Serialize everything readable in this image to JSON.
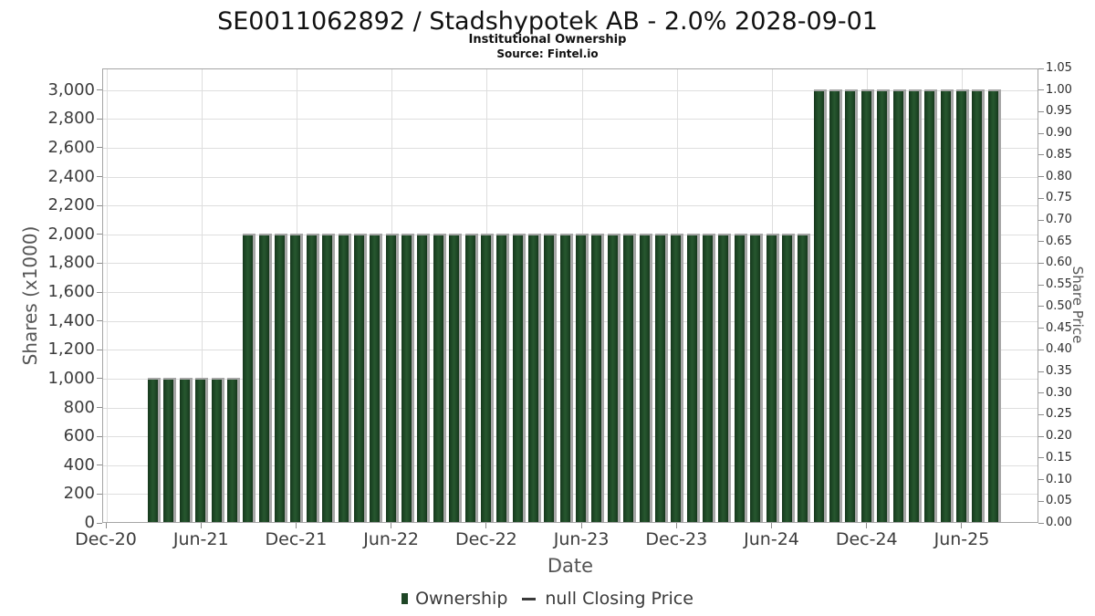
{
  "header": {
    "title": "SE0011062892 / Stadshypotek AB - 2.0% 2028-09-01",
    "subtitle": "Institutional Ownership",
    "source": "Source: Fintel.io"
  },
  "legend": {
    "ownership_label": "Ownership",
    "price_label": "null Closing Price"
  },
  "colors": {
    "bar_fill": "#1e4626",
    "bar_edge": "#a6a6a6",
    "grid_line": "#dedede",
    "plot_border": "#a5a5a5",
    "tick_text": "#3c3c3c",
    "axis_title_text": "#555555"
  },
  "chart_data": {
    "type": "bar",
    "title": "SE0011062892 / Stadshypotek AB - 2.0% 2028-09-01",
    "subtitle": "Institutional Ownership",
    "source": "Source: Fintel.io",
    "xlabel": "Date",
    "ylabel_left": "Shares (x1000)",
    "ylabel_right": "Share Price",
    "ylim_left": [
      0,
      3150
    ],
    "ylim_right": [
      0,
      1.05
    ],
    "grid": true,
    "legend_position": "bottom",
    "bar_unit": "shares x1000, monthly",
    "x_tick_labels": [
      "Dec-20",
      "Jun-21",
      "Dec-21",
      "Jun-22",
      "Dec-22",
      "Jun-23",
      "Dec-23",
      "Jun-24",
      "Dec-24",
      "Jun-25"
    ],
    "left_axis_ticks": [
      {
        "value": 0,
        "label": "0"
      },
      {
        "value": 200,
        "label": "200"
      },
      {
        "value": 400,
        "label": "400"
      },
      {
        "value": 600,
        "label": "600"
      },
      {
        "value": 800,
        "label": "800"
      },
      {
        "value": 1000,
        "label": "1,000"
      },
      {
        "value": 1200,
        "label": "1,200"
      },
      {
        "value": 1400,
        "label": "1,400"
      },
      {
        "value": 1600,
        "label": "1,600"
      },
      {
        "value": 1800,
        "label": "1,800"
      },
      {
        "value": 2000,
        "label": "2,000"
      },
      {
        "value": 2200,
        "label": "2,200"
      },
      {
        "value": 2400,
        "label": "2,400"
      },
      {
        "value": 2600,
        "label": "2,600"
      },
      {
        "value": 2800,
        "label": "2,800"
      },
      {
        "value": 3000,
        "label": "3,000"
      }
    ],
    "right_axis_ticks": [
      {
        "value": 0.0,
        "label": "0.00"
      },
      {
        "value": 0.05,
        "label": "0.05"
      },
      {
        "value": 0.1,
        "label": "0.10"
      },
      {
        "value": 0.15,
        "label": "0.15"
      },
      {
        "value": 0.2,
        "label": "0.20"
      },
      {
        "value": 0.25,
        "label": "0.25"
      },
      {
        "value": 0.3,
        "label": "0.30"
      },
      {
        "value": 0.35,
        "label": "0.35"
      },
      {
        "value": 0.4,
        "label": "0.40"
      },
      {
        "value": 0.45,
        "label": "0.45"
      },
      {
        "value": 0.5,
        "label": "0.50"
      },
      {
        "value": 0.55,
        "label": "0.55"
      },
      {
        "value": 0.6,
        "label": "0.60"
      },
      {
        "value": 0.65,
        "label": "0.65"
      },
      {
        "value": 0.7,
        "label": "0.70"
      },
      {
        "value": 0.75,
        "label": "0.75"
      },
      {
        "value": 0.8,
        "label": "0.80"
      },
      {
        "value": 0.85,
        "label": "0.85"
      },
      {
        "value": 0.9,
        "label": "0.90"
      },
      {
        "value": 0.95,
        "label": "0.95"
      },
      {
        "value": 1.0,
        "label": "1.00"
      },
      {
        "value": 1.05,
        "label": "1.05"
      }
    ],
    "series": [
      {
        "name": "Ownership",
        "type": "bar",
        "months": [
          "Mar-21",
          "Apr-21",
          "May-21",
          "Jun-21",
          "Jul-21",
          "Aug-21",
          "Sep-21",
          "Oct-21",
          "Nov-21",
          "Dec-21",
          "Jan-22",
          "Feb-22",
          "Mar-22",
          "Apr-22",
          "May-22",
          "Jun-22",
          "Jul-22",
          "Aug-22",
          "Sep-22",
          "Oct-22",
          "Nov-22",
          "Dec-22",
          "Jan-23",
          "Feb-23",
          "Mar-23",
          "Apr-23",
          "May-23",
          "Jun-23",
          "Jul-23",
          "Aug-23",
          "Sep-23",
          "Oct-23",
          "Nov-23",
          "Dec-23",
          "Jan-24",
          "Feb-24",
          "Mar-24",
          "Apr-24",
          "May-24",
          "Jun-24",
          "Jul-24",
          "Aug-24",
          "Sep-24",
          "Oct-24",
          "Nov-24",
          "Dec-24",
          "Jan-25",
          "Feb-25",
          "Mar-25",
          "Apr-25",
          "May-25",
          "Jun-25",
          "Jul-25",
          "Aug-25"
        ],
        "values": [
          1000,
          1000,
          1000,
          1000,
          1000,
          1000,
          2000,
          2000,
          2000,
          2000,
          2000,
          2000,
          2000,
          2000,
          2000,
          2000,
          2000,
          2000,
          2000,
          2000,
          2000,
          2000,
          2000,
          2000,
          2000,
          2000,
          2000,
          2000,
          2000,
          2000,
          2000,
          2000,
          2000,
          2000,
          2000,
          2000,
          2000,
          2000,
          2000,
          2000,
          2000,
          2000,
          3000,
          3000,
          3000,
          3000,
          3000,
          3000,
          3000,
          3000,
          3000,
          3000,
          3000,
          3000
        ]
      },
      {
        "name": "null Closing Price",
        "type": "line",
        "values": []
      }
    ]
  }
}
